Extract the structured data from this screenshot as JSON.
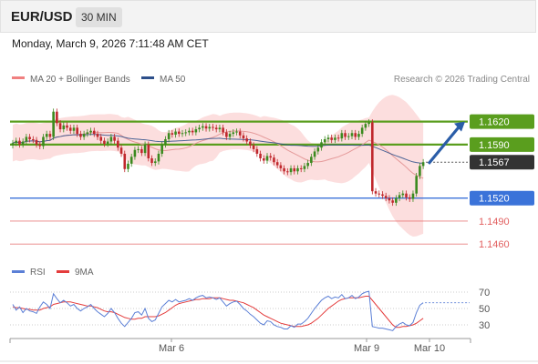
{
  "header": {
    "pair": "EUR/USD",
    "timeframe": "30 MIN"
  },
  "timestamp": "Monday, March 9, 2026 7:11:48 AM CET",
  "legend": {
    "bollinger": "MA 20 + Bollinger Bands",
    "ma50": "MA 50",
    "source": "Research © 2026 Trading Central",
    "rsi": "RSI",
    "rsi_ma": "9MA"
  },
  "colors": {
    "green": "#5a9e1e",
    "blue": "#3b73d9",
    "red": "#e26060",
    "current": "#333333",
    "arrow": "#2a5da8",
    "up": "#3b8a1f",
    "down": "#c0282d",
    "band": "#fbd3d3",
    "ma20": "#e59a9a",
    "ma50": "#2d4f8a",
    "rsi": "#5b7fd6",
    "rsi_ma": "#e43c3c"
  },
  "chart_data": [
    {
      "type": "candlestick",
      "ylim": [
        1.144,
        1.166
      ],
      "x_labels": [
        "Mar 6",
        "Mar 9",
        "Mar 10"
      ],
      "levels": [
        {
          "label": "1.1620",
          "value": 1.162,
          "style": "resistance"
        },
        {
          "label": "1.1590",
          "value": 1.159,
          "style": "resistance"
        },
        {
          "label": "1.1567",
          "value": 1.1567,
          "style": "current"
        },
        {
          "label": "1.1520",
          "value": 1.152,
          "style": "pivot"
        },
        {
          "label": "1.1490",
          "value": 1.149,
          "style": "support"
        },
        {
          "label": "1.1460",
          "value": 1.146,
          "style": "support"
        }
      ],
      "target_arrow": {
        "from": 1.1565,
        "to": 1.162
      },
      "closes": [
        1.1592,
        1.1595,
        1.159,
        1.1594,
        1.16,
        1.1597,
        1.1596,
        1.159,
        1.1588,
        1.16,
        1.1604,
        1.16,
        1.1633,
        1.1618,
        1.161,
        1.1615,
        1.1612,
        1.1608,
        1.1612,
        1.1604,
        1.16,
        1.1604,
        1.1606,
        1.1608,
        1.1604,
        1.16,
        1.1595,
        1.1591,
        1.1594,
        1.16,
        1.1595,
        1.1586,
        1.1578,
        1.1558,
        1.1565,
        1.1574,
        1.1583,
        1.1584,
        1.1579,
        1.159,
        1.1572,
        1.1566,
        1.1568,
        1.1578,
        1.159,
        1.1597,
        1.1605,
        1.1603,
        1.1607,
        1.1604,
        1.1605,
        1.1606,
        1.1608,
        1.1606,
        1.161,
        1.1612,
        1.1614,
        1.1611,
        1.1613,
        1.1612,
        1.161,
        1.1612,
        1.1606,
        1.16,
        1.1604,
        1.1606,
        1.1607,
        1.1602,
        1.1598,
        1.1594,
        1.1589,
        1.1584,
        1.1578,
        1.1572,
        1.1569,
        1.1575,
        1.1573,
        1.1567,
        1.1563,
        1.1559,
        1.1555,
        1.1554,
        1.1559,
        1.1555,
        1.1559,
        1.1558,
        1.1562,
        1.1566,
        1.1574,
        1.1581,
        1.1586,
        1.1593,
        1.1597,
        1.1599,
        1.1596,
        1.1599,
        1.1598,
        1.1605,
        1.16,
        1.1601,
        1.1605,
        1.16,
        1.1604,
        1.1612,
        1.1617,
        1.1619,
        1.1529,
        1.1526,
        1.1525,
        1.1523,
        1.152,
        1.1517,
        1.1514,
        1.152,
        1.1524,
        1.1526,
        1.1521,
        1.1519,
        1.1526,
        1.1549,
        1.1562,
        1.1567
      ]
    },
    {
      "type": "line",
      "title": "RSI",
      "yticks": [
        70,
        50,
        30
      ],
      "ylim": [
        20,
        80
      ],
      "series": [
        {
          "name": "RSI",
          "values": [
            55,
            48,
            52,
            45,
            50,
            47,
            46,
            44,
            52,
            58,
            55,
            50,
            68,
            62,
            57,
            60,
            57,
            53,
            55,
            50,
            47,
            50,
            52,
            55,
            50,
            46,
            43,
            40,
            44,
            50,
            45,
            38,
            32,
            28,
            33,
            38,
            45,
            46,
            42,
            50,
            38,
            34,
            36,
            44,
            52,
            56,
            60,
            58,
            61,
            58,
            59,
            60,
            62,
            60,
            63,
            65,
            66,
            63,
            64,
            63,
            61,
            63,
            58,
            53,
            56,
            58,
            59,
            55,
            50,
            47,
            43,
            40,
            36,
            32,
            30,
            35,
            34,
            30,
            28,
            27,
            25,
            25,
            29,
            27,
            31,
            31,
            34,
            38,
            44,
            50,
            55,
            60,
            63,
            65,
            62,
            64,
            63,
            67,
            62,
            63,
            66,
            62,
            64,
            68,
            70,
            71,
            28,
            27,
            26,
            26,
            25,
            24,
            23,
            28,
            31,
            33,
            30,
            29,
            33,
            45,
            54,
            57
          ]
        },
        {
          "name": "9MA",
          "values": [
            52,
            51,
            51,
            50,
            49,
            49,
            48,
            48,
            48,
            50,
            51,
            52,
            55,
            56,
            57,
            58,
            58,
            58,
            57,
            56,
            55,
            54,
            53,
            53,
            52,
            51,
            49,
            47,
            46,
            46,
            45,
            43,
            41,
            39,
            38,
            37,
            37,
            38,
            38,
            40,
            40,
            40,
            40,
            41,
            43,
            45,
            48,
            51,
            54,
            56,
            57,
            58,
            59,
            60,
            61,
            61,
            62,
            62,
            62,
            63,
            63,
            63,
            62,
            61,
            60,
            60,
            59,
            58,
            57,
            55,
            53,
            51,
            48,
            45,
            42,
            40,
            38,
            36,
            34,
            32,
            31,
            30,
            29,
            28,
            28,
            28,
            29,
            30,
            32,
            35,
            38,
            42,
            46,
            50,
            53,
            56,
            59,
            61,
            62,
            63,
            63,
            63,
            63,
            64,
            65,
            65,
            60,
            55,
            50,
            45,
            40,
            35,
            30,
            27,
            27,
            28,
            28,
            29,
            30,
            32,
            35,
            38
          ]
        }
      ]
    }
  ]
}
